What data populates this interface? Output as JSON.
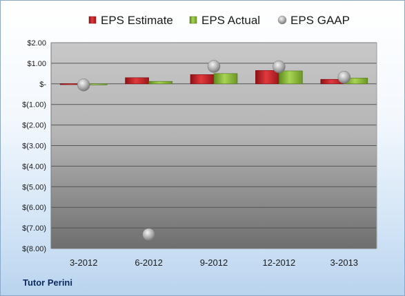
{
  "company_name": "Tutor Perini",
  "chart_data": {
    "type": "bar",
    "categories": [
      "3-2012",
      "6-2012",
      "9-2012",
      "12-2012",
      "3-2013"
    ],
    "series": [
      {
        "name": "EPS Estimate",
        "kind": "bar",
        "color": "#c8262a",
        "values": [
          0.01,
          0.3,
          0.45,
          0.65,
          0.22
        ]
      },
      {
        "name": "EPS Actual",
        "kind": "bar",
        "color": "#8db83a",
        "values": [
          -0.02,
          0.12,
          0.5,
          0.63,
          0.28
        ]
      },
      {
        "name": "EPS GAAP",
        "kind": "marker",
        "color": "#a0a0a0",
        "values": [
          -0.05,
          -7.32,
          0.85,
          0.83,
          0.32
        ]
      }
    ],
    "y_ticks": [
      "$2.00",
      "$1.00",
      "$-",
      "$(1.00)",
      "$(2.00)",
      "$(3.00)",
      "$(4.00)",
      "$(5.00)",
      "$(6.00)",
      "$(7.00)",
      "$(8.00)"
    ],
    "ylim": [
      -8,
      2
    ],
    "grid": true,
    "legend_position": "top"
  }
}
